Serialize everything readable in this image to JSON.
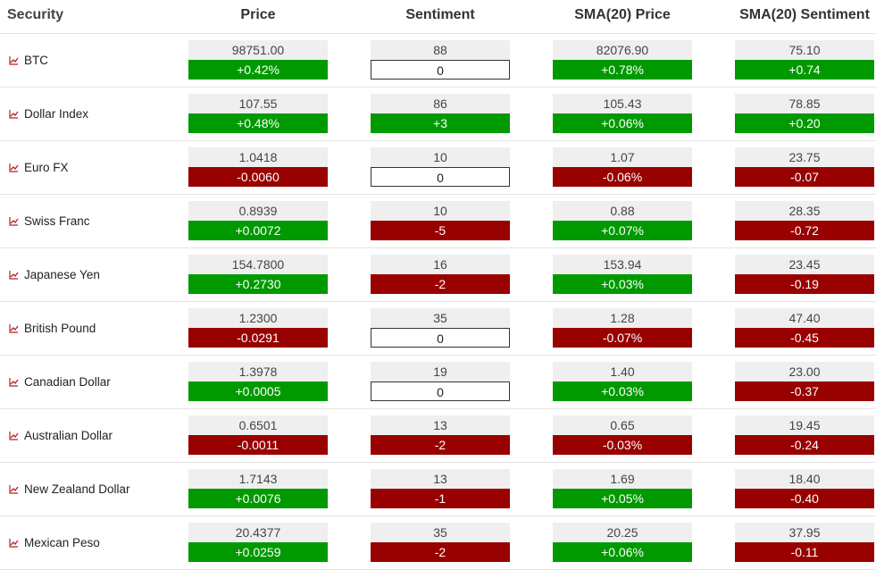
{
  "header": {
    "security": "Security",
    "price": "Price",
    "sentiment": "Sentiment",
    "sma_price": "SMA(20) Price",
    "sma_sentiment": "SMA(20) Sentiment"
  },
  "colors": {
    "positive": "#009a00",
    "negative": "#990000",
    "neutral": "#ffffff"
  },
  "icon": "chart-line-icon",
  "rows": [
    {
      "name": "BTC",
      "price": "98751.00",
      "price_chg": "+0.42%",
      "price_dir": "pos",
      "sent": "88",
      "sent_chg": "0",
      "sent_dir": "zero",
      "sma_price": "82076.90",
      "sma_price_chg": "+0.78%",
      "sma_price_dir": "pos",
      "sma_sent": "75.10",
      "sma_sent_chg": "+0.74",
      "sma_sent_dir": "pos"
    },
    {
      "name": "Dollar Index",
      "price": "107.55",
      "price_chg": "+0.48%",
      "price_dir": "pos",
      "sent": "86",
      "sent_chg": "+3",
      "sent_dir": "pos",
      "sma_price": "105.43",
      "sma_price_chg": "+0.06%",
      "sma_price_dir": "pos",
      "sma_sent": "78.85",
      "sma_sent_chg": "+0.20",
      "sma_sent_dir": "pos"
    },
    {
      "name": "Euro FX",
      "price": "1.0418",
      "price_chg": "-0.0060",
      "price_dir": "neg",
      "sent": "10",
      "sent_chg": "0",
      "sent_dir": "zero",
      "sma_price": "1.07",
      "sma_price_chg": "-0.06%",
      "sma_price_dir": "neg",
      "sma_sent": "23.75",
      "sma_sent_chg": "-0.07",
      "sma_sent_dir": "neg"
    },
    {
      "name": "Swiss Franc",
      "price": "0.8939",
      "price_chg": "+0.0072",
      "price_dir": "pos",
      "sent": "10",
      "sent_chg": "-5",
      "sent_dir": "neg",
      "sma_price": "0.88",
      "sma_price_chg": "+0.07%",
      "sma_price_dir": "pos",
      "sma_sent": "28.35",
      "sma_sent_chg": "-0.72",
      "sma_sent_dir": "neg"
    },
    {
      "name": "Japanese Yen",
      "price": "154.7800",
      "price_chg": "+0.2730",
      "price_dir": "pos",
      "sent": "16",
      "sent_chg": "-2",
      "sent_dir": "neg",
      "sma_price": "153.94",
      "sma_price_chg": "+0.03%",
      "sma_price_dir": "pos",
      "sma_sent": "23.45",
      "sma_sent_chg": "-0.19",
      "sma_sent_dir": "neg"
    },
    {
      "name": "British Pound",
      "price": "1.2300",
      "price_chg": "-0.0291",
      "price_dir": "neg",
      "sent": "35",
      "sent_chg": "0",
      "sent_dir": "zero",
      "sma_price": "1.28",
      "sma_price_chg": "-0.07%",
      "sma_price_dir": "neg",
      "sma_sent": "47.40",
      "sma_sent_chg": "-0.45",
      "sma_sent_dir": "neg"
    },
    {
      "name": "Canadian Dollar",
      "price": "1.3978",
      "price_chg": "+0.0005",
      "price_dir": "pos",
      "sent": "19",
      "sent_chg": "0",
      "sent_dir": "zero",
      "sma_price": "1.40",
      "sma_price_chg": "+0.03%",
      "sma_price_dir": "pos",
      "sma_sent": "23.00",
      "sma_sent_chg": "-0.37",
      "sma_sent_dir": "neg"
    },
    {
      "name": "Australian Dollar",
      "price": "0.6501",
      "price_chg": "-0.0011",
      "price_dir": "neg",
      "sent": "13",
      "sent_chg": "-2",
      "sent_dir": "neg",
      "sma_price": "0.65",
      "sma_price_chg": "-0.03%",
      "sma_price_dir": "neg",
      "sma_sent": "19.45",
      "sma_sent_chg": "-0.24",
      "sma_sent_dir": "neg"
    },
    {
      "name": "New Zealand Dollar",
      "price": "1.7143",
      "price_chg": "+0.0076",
      "price_dir": "pos",
      "sent": "13",
      "sent_chg": "-1",
      "sent_dir": "neg",
      "sma_price": "1.69",
      "sma_price_chg": "+0.05%",
      "sma_price_dir": "pos",
      "sma_sent": "18.40",
      "sma_sent_chg": "-0.40",
      "sma_sent_dir": "neg"
    },
    {
      "name": "Mexican Peso",
      "price": "20.4377",
      "price_chg": "+0.0259",
      "price_dir": "pos",
      "sent": "35",
      "sent_chg": "-2",
      "sent_dir": "neg",
      "sma_price": "20.25",
      "sma_price_chg": "+0.06%",
      "sma_price_dir": "pos",
      "sma_sent": "37.95",
      "sma_sent_chg": "-0.11",
      "sma_sent_dir": "neg"
    }
  ]
}
